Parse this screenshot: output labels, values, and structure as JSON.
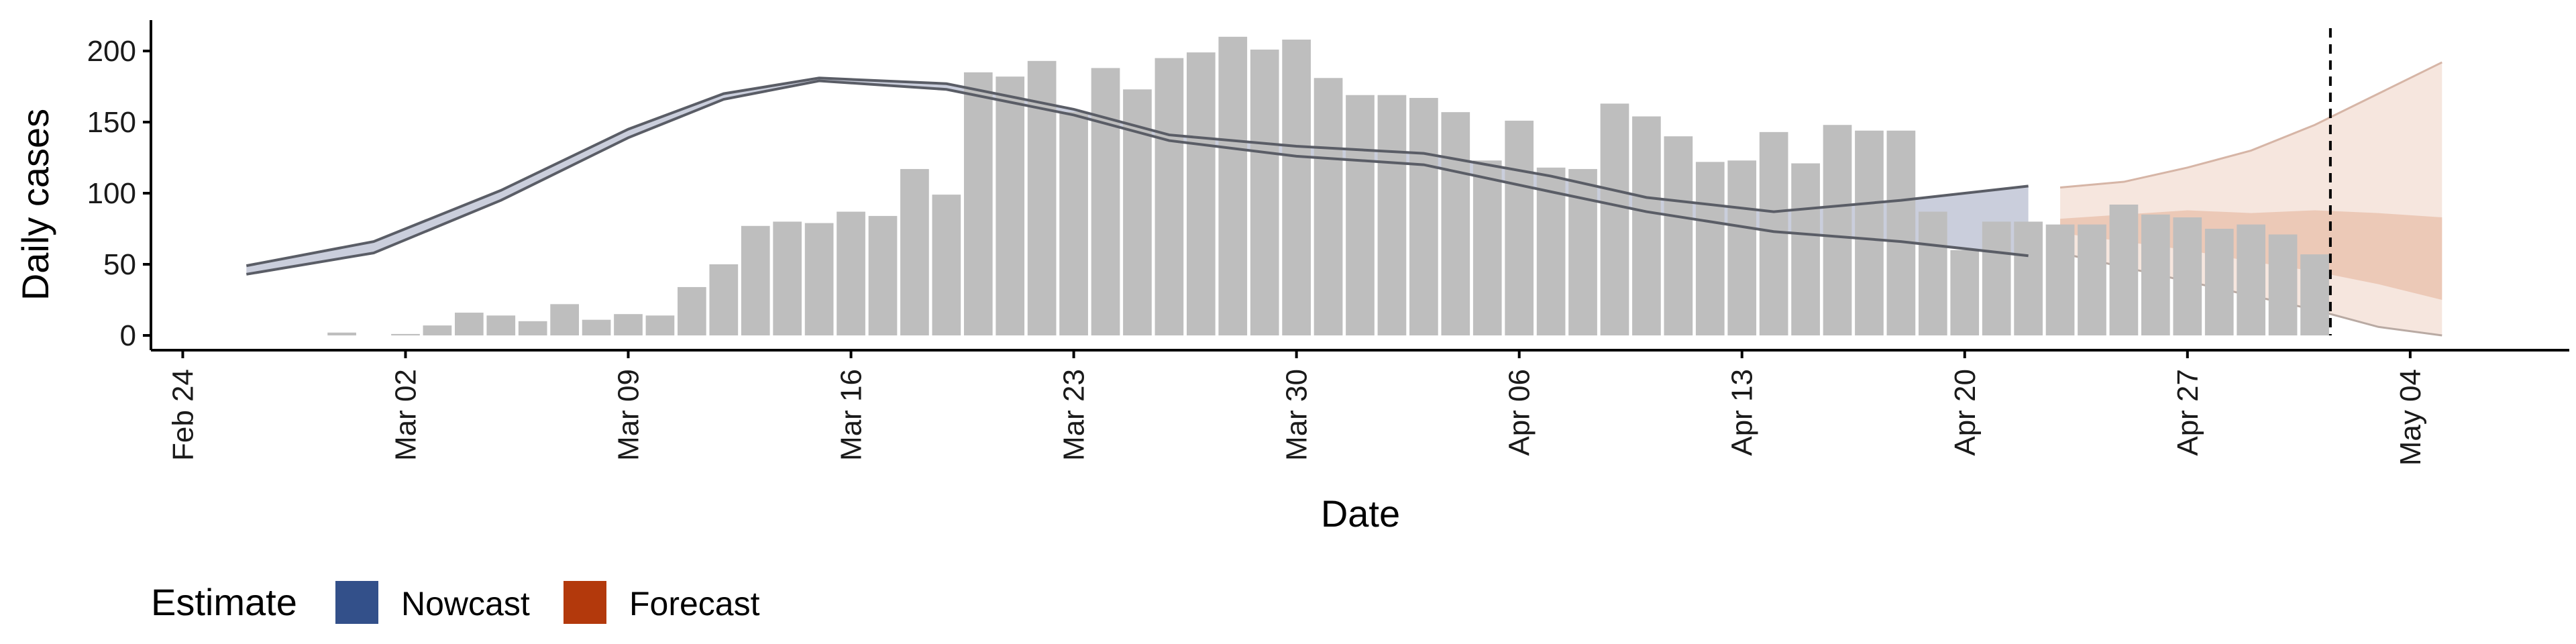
{
  "chart_data": {
    "type": "bar",
    "xlabel": "Date",
    "ylabel": "Daily cases",
    "ylim": [
      0,
      220
    ],
    "y_ticks": [
      0,
      50,
      100,
      150,
      200
    ],
    "x_ticks": [
      {
        "date": "2020-02-24",
        "label": "Feb 24"
      },
      {
        "date": "2020-03-02",
        "label": "Mar 02"
      },
      {
        "date": "2020-03-09",
        "label": "Mar 09"
      },
      {
        "date": "2020-03-16",
        "label": "Mar 16"
      },
      {
        "date": "2020-03-23",
        "label": "Mar 23"
      },
      {
        "date": "2020-03-30",
        "label": "Mar 30"
      },
      {
        "date": "2020-04-06",
        "label": "Apr 06"
      },
      {
        "date": "2020-04-13",
        "label": "Apr 13"
      },
      {
        "date": "2020-04-20",
        "label": "Apr 20"
      },
      {
        "date": "2020-04-27",
        "label": "Apr 27"
      },
      {
        "date": "2020-05-04",
        "label": "May 04"
      }
    ],
    "x_range": [
      "2020-02-23",
      "2020-05-09"
    ],
    "reported_cases": {
      "dates": [
        "2020-02-29",
        "2020-03-01",
        "2020-03-02",
        "2020-03-03",
        "2020-03-04",
        "2020-03-05",
        "2020-03-06",
        "2020-03-07",
        "2020-03-08",
        "2020-03-09",
        "2020-03-10",
        "2020-03-11",
        "2020-03-12",
        "2020-03-13",
        "2020-03-14",
        "2020-03-15",
        "2020-03-16",
        "2020-03-17",
        "2020-03-18",
        "2020-03-19",
        "2020-03-20",
        "2020-03-21",
        "2020-03-22",
        "2020-03-23",
        "2020-03-24",
        "2020-03-25",
        "2020-03-26",
        "2020-03-27",
        "2020-03-28",
        "2020-03-29",
        "2020-03-30",
        "2020-03-31",
        "2020-04-01",
        "2020-04-02",
        "2020-04-03",
        "2020-04-04",
        "2020-04-05",
        "2020-04-06",
        "2020-04-07",
        "2020-04-08",
        "2020-04-09",
        "2020-04-10",
        "2020-04-11",
        "2020-04-12",
        "2020-04-13",
        "2020-04-14",
        "2020-04-15",
        "2020-04-16",
        "2020-04-17",
        "2020-04-18",
        "2020-04-19",
        "2020-04-20",
        "2020-04-21",
        "2020-04-22",
        "2020-04-23",
        "2020-04-24",
        "2020-04-25",
        "2020-04-26",
        "2020-04-27",
        "2020-04-28",
        "2020-04-29",
        "2020-04-30"
      ],
      "values": [
        2,
        0,
        1,
        7,
        16,
        14,
        10,
        22,
        11,
        15,
        14,
        34,
        50,
        77,
        80,
        79,
        87,
        84,
        117,
        99,
        185,
        182,
        193,
        157,
        188,
        173,
        195,
        199,
        210,
        201,
        208,
        181,
        169,
        169,
        167,
        157,
        123,
        151,
        118,
        117,
        163,
        154,
        140,
        122,
        123,
        143,
        121,
        148,
        144,
        144,
        87,
        60,
        80,
        80,
        78,
        78,
        92,
        85,
        83,
        75,
        78,
        71
      ]
    },
    "final_bar": {
      "date": "2020-05-01",
      "value": 57
    },
    "reference_line": {
      "date": "2020-05-01",
      "style": "dashed"
    },
    "nowcast": {
      "dates": [
        "2020-02-26",
        "2020-03-01",
        "2020-03-05",
        "2020-03-09",
        "2020-03-12",
        "2020-03-15",
        "2020-03-19",
        "2020-03-23",
        "2020-03-26",
        "2020-03-30",
        "2020-04-03",
        "2020-04-07",
        "2020-04-10",
        "2020-04-14",
        "2020-04-18",
        "2020-04-22"
      ],
      "upper": [
        49,
        66,
        102,
        145,
        170,
        181,
        177,
        159,
        141,
        133,
        128,
        112,
        97,
        87,
        95,
        105
      ],
      "lower": [
        43,
        58,
        95,
        139,
        166,
        179,
        173,
        155,
        137,
        126,
        120,
        101,
        87,
        73,
        66,
        56
      ]
    },
    "forecast": {
      "dates": [
        "2020-04-23",
        "2020-04-25",
        "2020-04-27",
        "2020-04-29",
        "2020-05-01",
        "2020-05-03",
        "2020-05-05"
      ],
      "outer_upper": [
        104,
        108,
        118,
        130,
        148,
        170,
        192
      ],
      "inner_upper": [
        82,
        85,
        88,
        86,
        88,
        86,
        83
      ],
      "inner_lower": [
        72,
        66,
        60,
        52,
        45,
        36,
        25
      ],
      "outer_lower": [
        58,
        48,
        38,
        28,
        18,
        6,
        0
      ]
    },
    "legend": {
      "title": "Estimate",
      "items": [
        {
          "label": "Nowcast",
          "color": "#33508a"
        },
        {
          "label": "Forecast",
          "color": "#b3390c"
        }
      ],
      "position": "bottom-left"
    },
    "colors": {
      "bar": "#bebebe",
      "nowcast_band": "#c4c9d8",
      "nowcast_line": "#5a5d66",
      "forecast_outer": "#f5e2d8",
      "forecast_inner": "#eac3b0",
      "axis": "#000000"
    }
  }
}
